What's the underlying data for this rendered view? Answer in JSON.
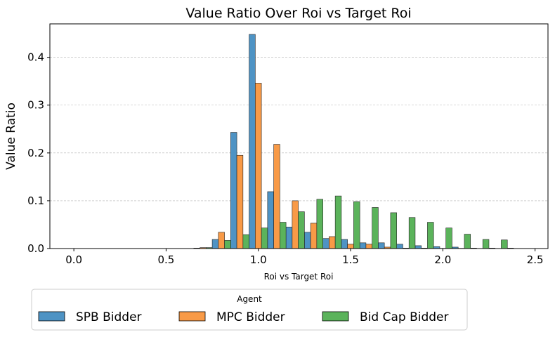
{
  "chart_data": {
    "type": "bar",
    "title": "Value Ratio Over Roi vs Target Roi",
    "xlabel": "Roi vs Target Roi",
    "ylabel": "Value Ratio",
    "xlim": [
      -0.13,
      2.57
    ],
    "ylim": [
      0,
      0.47
    ],
    "xticks": [
      0.0,
      0.5,
      1.0,
      1.5,
      2.0,
      2.5
    ],
    "xtick_labels": [
      "0.0",
      "0.5",
      "1.0",
      "1.5",
      "2.0",
      "2.5"
    ],
    "yticks": [
      0.0,
      0.1,
      0.2,
      0.3,
      0.4
    ],
    "ytick_labels": [
      "0.0",
      "0.1",
      "0.2",
      "0.3",
      "0.4"
    ],
    "grid": "y-dashed",
    "legend": {
      "title": "Agent",
      "placement": "below"
    },
    "bin_width": 0.1,
    "x": [
      0.7,
      0.8,
      0.9,
      1.0,
      1.1,
      1.2,
      1.3,
      1.4,
      1.5,
      1.6,
      1.7,
      1.8,
      1.9,
      2.0,
      2.1,
      2.2,
      2.3,
      2.4
    ],
    "series": [
      {
        "name": "SPB Bidder",
        "color": "#4e93c4",
        "values": [
          0.001,
          0.019,
          0.243,
          0.448,
          0.119,
          0.045,
          0.034,
          0.021,
          0.019,
          0.012,
          0.012,
          0.009,
          0.006,
          0.004,
          0.003,
          0.001,
          0.001,
          0.001
        ]
      },
      {
        "name": "MPC Bidder",
        "color": "#f89a47",
        "values": [
          0.002,
          0.034,
          0.195,
          0.346,
          0.218,
          0.1,
          0.053,
          0.025,
          0.009,
          0.009,
          0.003,
          0.001,
          0.001,
          0.0005,
          0.0005,
          0.0,
          0.0,
          0.0
        ]
      },
      {
        "name": "Bid Cap Bidder",
        "color": "#5bb35b",
        "values": [
          0.002,
          0.017,
          0.029,
          0.043,
          0.055,
          0.077,
          0.103,
          0.11,
          0.098,
          0.086,
          0.075,
          0.065,
          0.055,
          0.043,
          0.03,
          0.019,
          0.018,
          0.0
        ]
      }
    ]
  }
}
